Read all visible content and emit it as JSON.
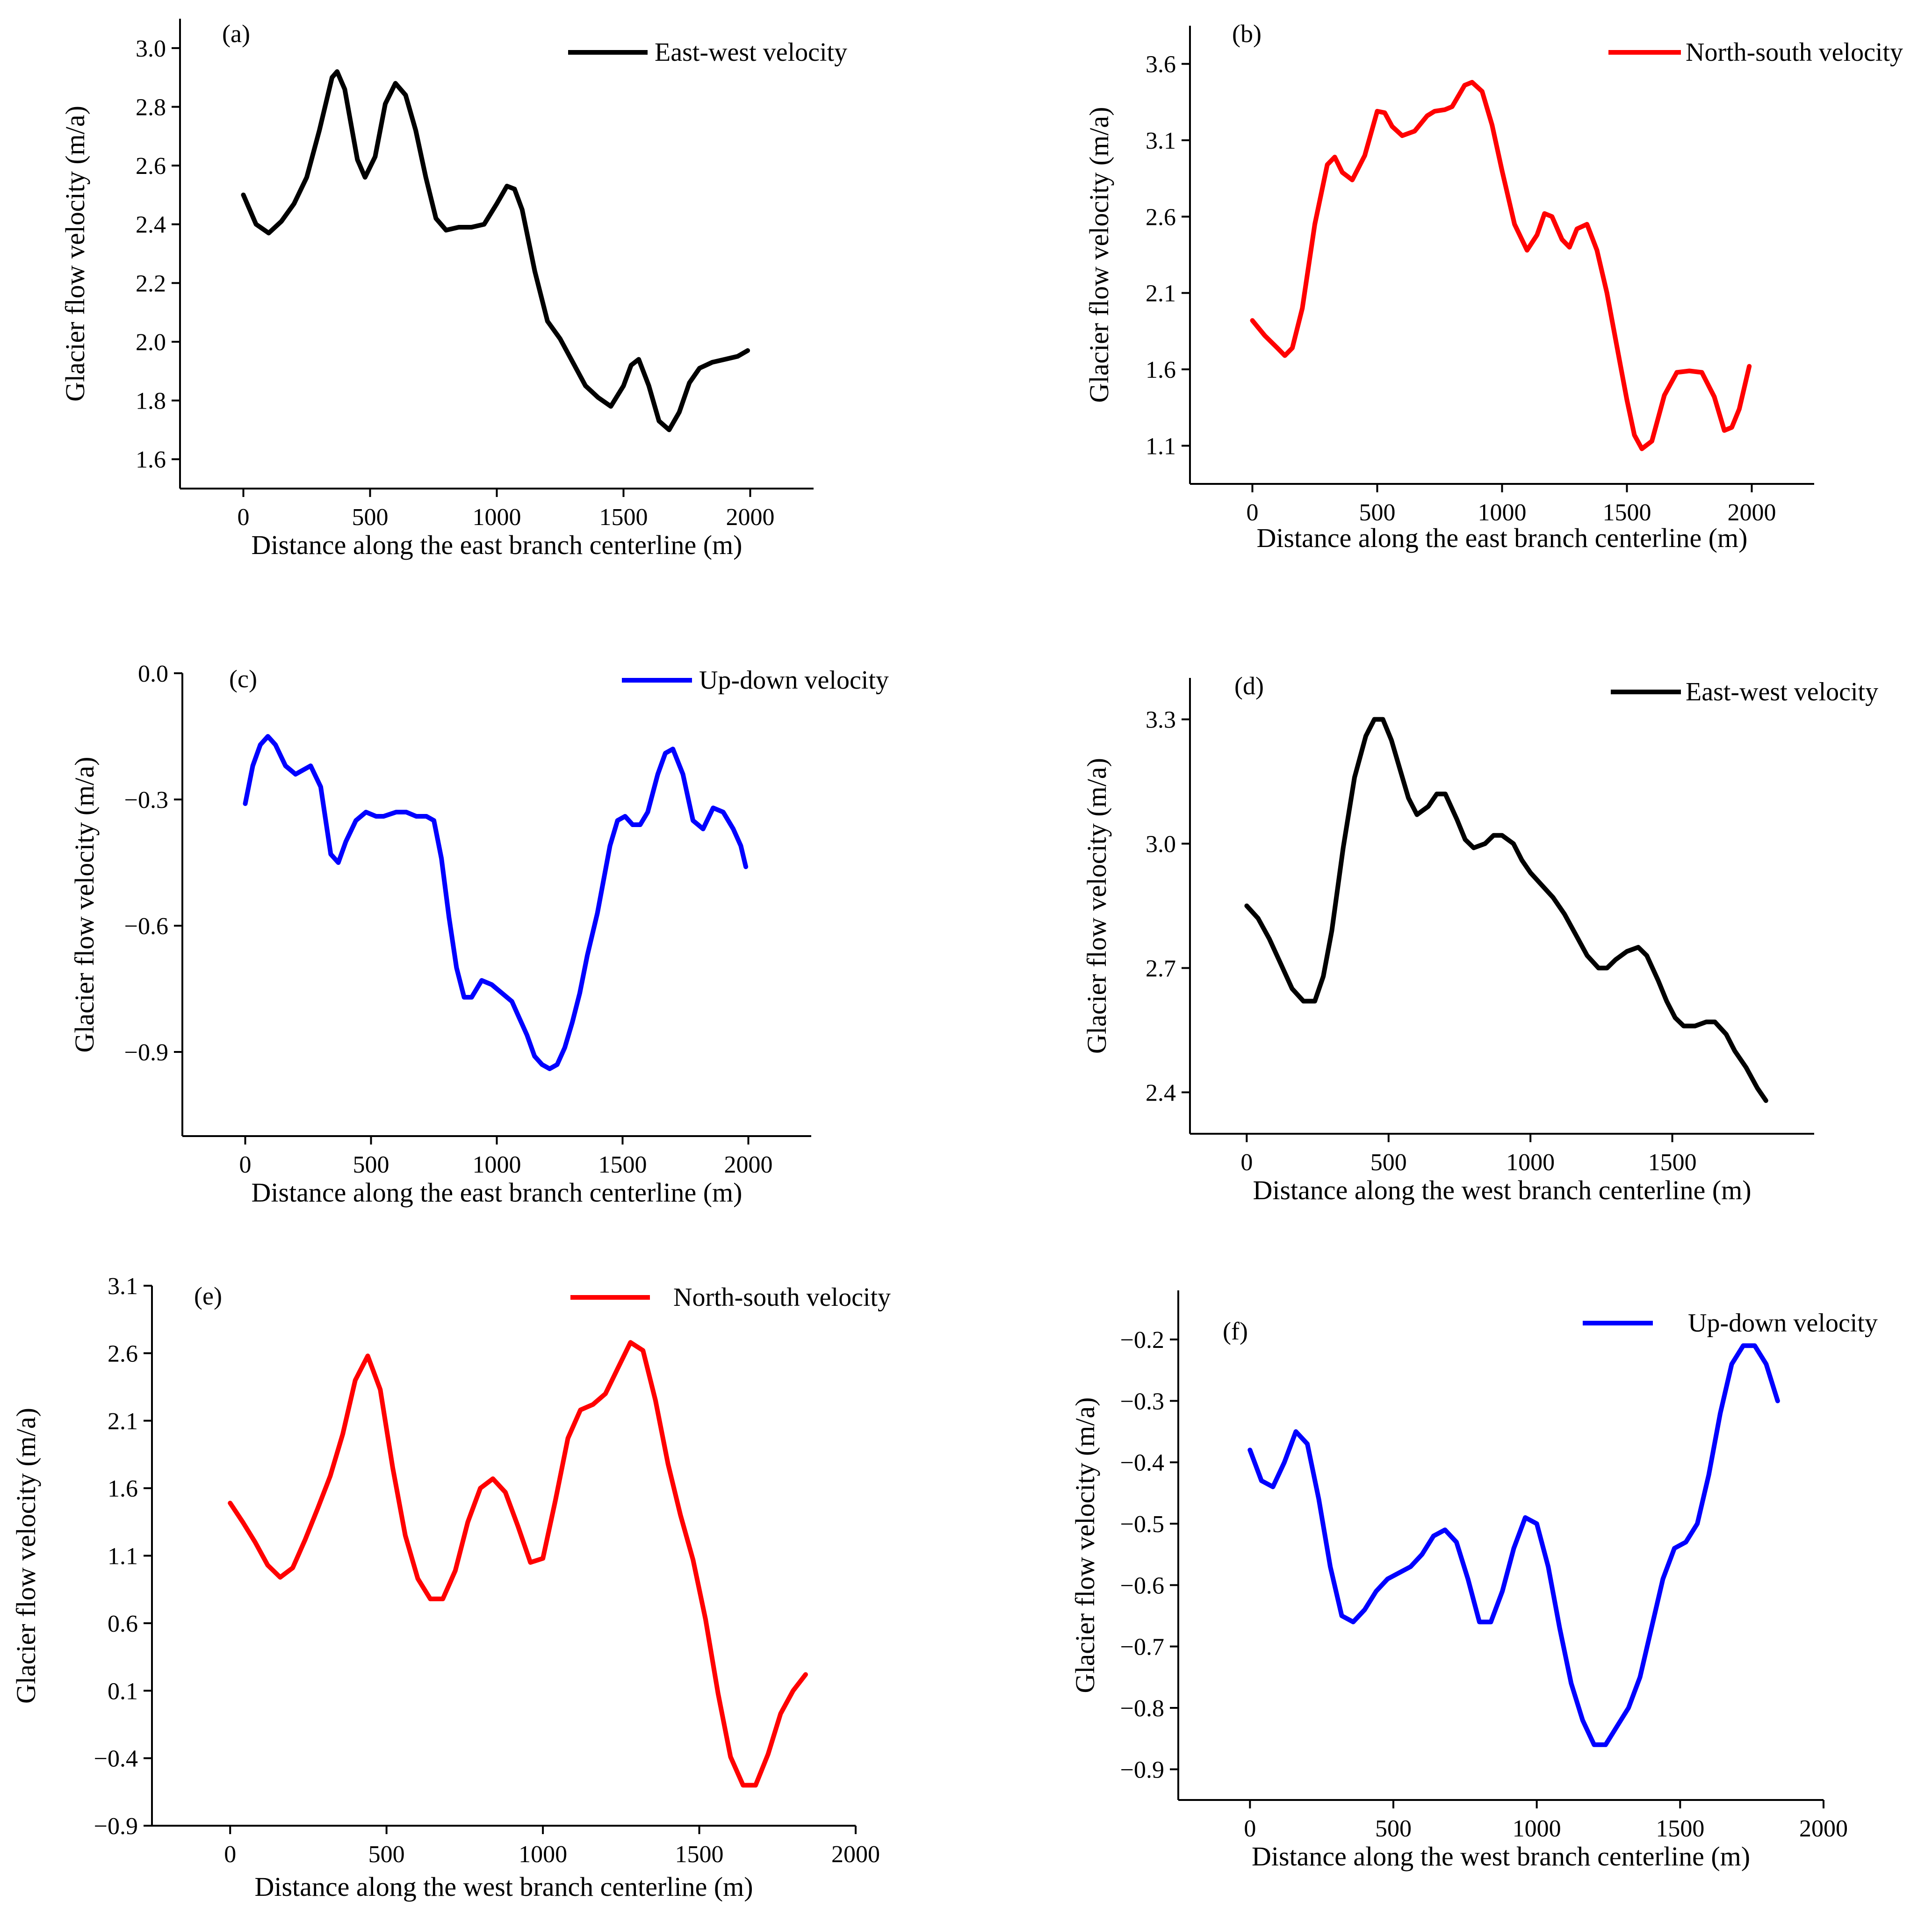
{
  "chart_data": [
    {
      "panel": "(a)",
      "type": "line",
      "title": "",
      "xlabel": "Distance along the east branch centerline (m)",
      "ylabel": "Glacier flow velocity (m/a)",
      "xlim": [
        -250,
        2250
      ],
      "ylim": [
        1.5,
        3.1
      ],
      "xticks": [
        0,
        500,
        1000,
        1500,
        2000
      ],
      "yticks": [
        1.6,
        1.8,
        2.0,
        2.2,
        2.4,
        2.6,
        2.8,
        3.0
      ],
      "tick_labels_x": [
        "0",
        "500",
        "1000",
        "1500",
        "2000"
      ],
      "tick_labels_y": [
        "1.6",
        "1.8",
        "2.0",
        "2.2",
        "2.4",
        "2.6",
        "2.8",
        "3.0"
      ],
      "legend_position": "top-right",
      "series": [
        {
          "name": "East-west velocity",
          "color": "#000000",
          "x": [
            0,
            50,
            100,
            150,
            200,
            250,
            300,
            350,
            370,
            400,
            450,
            480,
            520,
            560,
            600,
            640,
            680,
            720,
            760,
            800,
            850,
            900,
            950,
            1000,
            1040,
            1070,
            1100,
            1150,
            1200,
            1250,
            1300,
            1350,
            1400,
            1450,
            1500,
            1530,
            1560,
            1600,
            1640,
            1680,
            1720,
            1760,
            1800,
            1850,
            1900,
            1950,
            1990
          ],
          "values": [
            2.5,
            2.4,
            2.37,
            2.41,
            2.47,
            2.56,
            2.72,
            2.9,
            2.92,
            2.86,
            2.62,
            2.56,
            2.63,
            2.81,
            2.88,
            2.84,
            2.72,
            2.56,
            2.42,
            2.38,
            2.39,
            2.39,
            2.4,
            2.47,
            2.53,
            2.52,
            2.45,
            2.24,
            2.07,
            2.01,
            1.93,
            1.85,
            1.81,
            1.78,
            1.85,
            1.92,
            1.94,
            1.85,
            1.73,
            1.7,
            1.76,
            1.86,
            1.91,
            1.93,
            1.94,
            1.95,
            1.97
          ]
        }
      ]
    },
    {
      "panel": "(b)",
      "type": "line",
      "title": "",
      "xlabel": "Distance along the east branch centerline (m)",
      "ylabel": "Glacier flow velocity (m/a)",
      "xlim": [
        -250,
        2250
      ],
      "ylim": [
        0.85,
        3.85
      ],
      "xticks": [
        0,
        500,
        1000,
        1500,
        2000
      ],
      "yticks": [
        1.1,
        1.6,
        2.1,
        2.6,
        3.1,
        3.6
      ],
      "tick_labels_x": [
        "0",
        "500",
        "1000",
        "1500",
        "2000"
      ],
      "tick_labels_y": [
        "1.1",
        "1.6",
        "2.1",
        "2.6",
        "3.1",
        "3.6"
      ],
      "legend_position": "top-right",
      "series": [
        {
          "name": "North-south velocity",
          "color": "#ff0000",
          "x": [
            0,
            50,
            100,
            130,
            160,
            200,
            250,
            300,
            330,
            360,
            400,
            450,
            500,
            530,
            560,
            600,
            650,
            700,
            730,
            770,
            800,
            850,
            880,
            920,
            960,
            1000,
            1050,
            1100,
            1140,
            1170,
            1200,
            1240,
            1270,
            1300,
            1340,
            1380,
            1420,
            1460,
            1500,
            1530,
            1560,
            1600,
            1650,
            1700,
            1750,
            1800,
            1850,
            1890,
            1920,
            1950,
            1990
          ],
          "values": [
            1.92,
            1.82,
            1.74,
            1.69,
            1.74,
            2.0,
            2.55,
            2.94,
            2.99,
            2.89,
            2.84,
            3.0,
            3.29,
            3.28,
            3.19,
            3.13,
            3.16,
            3.26,
            3.29,
            3.3,
            3.32,
            3.46,
            3.48,
            3.42,
            3.2,
            2.9,
            2.55,
            2.38,
            2.48,
            2.62,
            2.6,
            2.45,
            2.4,
            2.52,
            2.55,
            2.38,
            2.1,
            1.75,
            1.4,
            1.17,
            1.08,
            1.13,
            1.43,
            1.58,
            1.59,
            1.58,
            1.42,
            1.2,
            1.22,
            1.34,
            1.62
          ]
        }
      ]
    },
    {
      "panel": "(c)",
      "type": "line",
      "title": "",
      "xlabel": "Distance along the east branch centerline (m)",
      "ylabel": "Glacier flow velocity (m/a)",
      "xlim": [
        -250,
        2250
      ],
      "ylim": [
        -1.1,
        0.0
      ],
      "xticks": [
        0,
        500,
        1000,
        1500,
        2000
      ],
      "yticks": [
        -0.9,
        -0.6,
        -0.3,
        0.0
      ],
      "tick_labels_x": [
        "0",
        "500",
        "1000",
        "1500",
        "2000"
      ],
      "tick_labels_y": [
        "-0.9",
        "-0.6",
        "-0.3",
        "0.0"
      ],
      "legend_position": "top-right",
      "series": [
        {
          "name": "Up-down velocity",
          "color": "#0000ff",
          "x": [
            0,
            30,
            60,
            90,
            120,
            160,
            200,
            230,
            260,
            300,
            340,
            370,
            400,
            440,
            480,
            520,
            550,
            600,
            640,
            680,
            720,
            750,
            780,
            810,
            840,
            870,
            900,
            940,
            980,
            1020,
            1060,
            1090,
            1120,
            1150,
            1180,
            1210,
            1240,
            1270,
            1300,
            1330,
            1360,
            1400,
            1450,
            1480,
            1510,
            1540,
            1570,
            1600,
            1640,
            1670,
            1700,
            1740,
            1780,
            1820,
            1860,
            1900,
            1940,
            1970,
            1990
          ],
          "values": [
            -0.31,
            -0.22,
            -0.17,
            -0.15,
            -0.17,
            -0.22,
            -0.24,
            -0.23,
            -0.22,
            -0.27,
            -0.43,
            -0.45,
            -0.4,
            -0.35,
            -0.33,
            -0.34,
            -0.34,
            -0.33,
            -0.33,
            -0.34,
            -0.34,
            -0.35,
            -0.44,
            -0.58,
            -0.7,
            -0.77,
            -0.77,
            -0.73,
            -0.74,
            -0.76,
            -0.78,
            -0.82,
            -0.86,
            -0.91,
            -0.93,
            -0.94,
            -0.93,
            -0.89,
            -0.83,
            -0.76,
            -0.67,
            -0.57,
            -0.41,
            -0.35,
            -0.34,
            -0.36,
            -0.36,
            -0.33,
            -0.24,
            -0.19,
            -0.18,
            -0.24,
            -0.35,
            -0.37,
            -0.32,
            -0.33,
            -0.37,
            -0.41,
            -0.46
          ]
        }
      ]
    },
    {
      "panel": "(d)",
      "type": "line",
      "title": "",
      "xlabel": "Distance along the west branch centerline (m)",
      "ylabel": "Glacier flow velocity (m/a)",
      "xlim": [
        -200,
        2000
      ],
      "ylim": [
        2.3,
        3.4
      ],
      "xticks": [
        0,
        500,
        1000,
        1500
      ],
      "yticks": [
        2.4,
        2.7,
        3.0,
        3.3
      ],
      "tick_labels_x": [
        "0",
        "500",
        "1000",
        "1500"
      ],
      "tick_labels_y": [
        "2.4",
        "2.7",
        "3.0",
        "3.3"
      ],
      "legend_position": "top-right",
      "series": [
        {
          "name": "East-west velocity",
          "color": "#000000",
          "x": [
            0,
            40,
            80,
            120,
            160,
            200,
            240,
            270,
            300,
            340,
            380,
            420,
            450,
            480,
            510,
            540,
            570,
            600,
            640,
            670,
            700,
            740,
            770,
            800,
            840,
            870,
            900,
            940,
            970,
            1000,
            1040,
            1080,
            1120,
            1160,
            1200,
            1240,
            1270,
            1300,
            1340,
            1380,
            1410,
            1450,
            1480,
            1510,
            1540,
            1580,
            1620,
            1650,
            1690,
            1720,
            1760,
            1800,
            1830
          ],
          "values": [
            2.85,
            2.82,
            2.77,
            2.71,
            2.65,
            2.62,
            2.62,
            2.68,
            2.79,
            2.99,
            3.16,
            3.26,
            3.3,
            3.3,
            3.25,
            3.18,
            3.11,
            3.07,
            3.09,
            3.12,
            3.12,
            3.06,
            3.01,
            2.99,
            3.0,
            3.02,
            3.02,
            3.0,
            2.96,
            2.93,
            2.9,
            2.87,
            2.83,
            2.78,
            2.73,
            2.7,
            2.7,
            2.72,
            2.74,
            2.75,
            2.73,
            2.67,
            2.62,
            2.58,
            2.56,
            2.56,
            2.57,
            2.57,
            2.54,
            2.5,
            2.46,
            2.41,
            2.38
          ]
        }
      ]
    },
    {
      "panel": "(e)",
      "type": "line",
      "title": "",
      "xlabel": "Distance along the west branch centerline (m)",
      "ylabel": "Glacier flow velocity (m/a)",
      "xlim": [
        -250,
        2000
      ],
      "ylim": [
        -0.9,
        3.1
      ],
      "xticks": [
        0,
        500,
        1000,
        1500,
        2000
      ],
      "yticks": [
        -0.9,
        -0.4,
        0.1,
        0.6,
        1.1,
        1.6,
        2.1,
        2.6,
        3.1
      ],
      "tick_labels_x": [
        "0",
        "500",
        "1000",
        "1500",
        "2000"
      ],
      "tick_labels_y": [
        "-0.9",
        "-0.4",
        "0.1",
        "0.6",
        "1.1",
        "1.6",
        "2.1",
        "2.6",
        "3.1"
      ],
      "legend_position": "top-right",
      "series": [
        {
          "name": "North-south velocity",
          "color": "#ff0000",
          "x": [
            0,
            40,
            80,
            120,
            160,
            200,
            240,
            280,
            320,
            360,
            400,
            440,
            480,
            520,
            560,
            600,
            640,
            680,
            720,
            760,
            800,
            840,
            880,
            920,
            960,
            1000,
            1040,
            1080,
            1120,
            1160,
            1200,
            1240,
            1280,
            1320,
            1360,
            1400,
            1440,
            1480,
            1520,
            1560,
            1600,
            1640,
            1680,
            1720,
            1760,
            1800,
            1840
          ],
          "values": [
            1.49,
            1.35,
            1.2,
            1.03,
            0.94,
            1.01,
            1.22,
            1.45,
            1.69,
            2.0,
            2.4,
            2.58,
            2.33,
            1.75,
            1.25,
            0.93,
            0.78,
            0.78,
            0.99,
            1.35,
            1.6,
            1.67,
            1.57,
            1.32,
            1.05,
            1.08,
            1.51,
            1.97,
            2.18,
            2.22,
            2.3,
            2.49,
            2.68,
            2.62,
            2.25,
            1.78,
            1.4,
            1.07,
            0.63,
            0.08,
            -0.39,
            -0.6,
            -0.6,
            -0.37,
            -0.07,
            0.1,
            0.22
          ]
        }
      ]
    },
    {
      "panel": "(f)",
      "type": "line",
      "title": "",
      "xlabel": "Distance along the west branch centerline (m)",
      "ylabel": "Glacier flow velocity (m/a)",
      "xlim": [
        -250,
        2000
      ],
      "ylim": [
        -0.95,
        -0.12
      ],
      "xticks": [
        0,
        500,
        1000,
        1500,
        2000
      ],
      "yticks": [
        -0.9,
        -0.8,
        -0.7,
        -0.6,
        -0.5,
        -0.4,
        -0.3,
        -0.2
      ],
      "tick_labels_x": [
        "0",
        "500",
        "1000",
        "1500",
        "2000"
      ],
      "tick_labels_y": [
        "-0.9",
        "-0.8",
        "-0.7",
        "-0.6",
        "-0.5",
        "-0.4",
        "-0.3",
        "-0.2"
      ],
      "legend_position": "top-right",
      "series": [
        {
          "name": "Up-down velocity",
          "color": "#0000ff",
          "x": [
            0,
            40,
            80,
            120,
            160,
            200,
            240,
            280,
            320,
            360,
            400,
            440,
            480,
            520,
            560,
            600,
            640,
            680,
            720,
            760,
            800,
            840,
            880,
            920,
            960,
            1000,
            1040,
            1080,
            1120,
            1160,
            1200,
            1240,
            1280,
            1320,
            1360,
            1400,
            1440,
            1480,
            1520,
            1560,
            1600,
            1640,
            1680,
            1720,
            1760,
            1800,
            1840
          ],
          "values": [
            -0.38,
            -0.43,
            -0.44,
            -0.4,
            -0.35,
            -0.37,
            -0.46,
            -0.57,
            -0.65,
            -0.66,
            -0.64,
            -0.61,
            -0.59,
            -0.58,
            -0.57,
            -0.55,
            -0.52,
            -0.51,
            -0.53,
            -0.59,
            -0.66,
            -0.66,
            -0.61,
            -0.54,
            -0.49,
            -0.5,
            -0.57,
            -0.67,
            -0.76,
            -0.82,
            -0.86,
            -0.86,
            -0.83,
            -0.8,
            -0.75,
            -0.67,
            -0.59,
            -0.54,
            -0.53,
            -0.5,
            -0.42,
            -0.32,
            -0.24,
            -0.21,
            -0.21,
            -0.24,
            -0.3
          ]
        }
      ]
    }
  ]
}
